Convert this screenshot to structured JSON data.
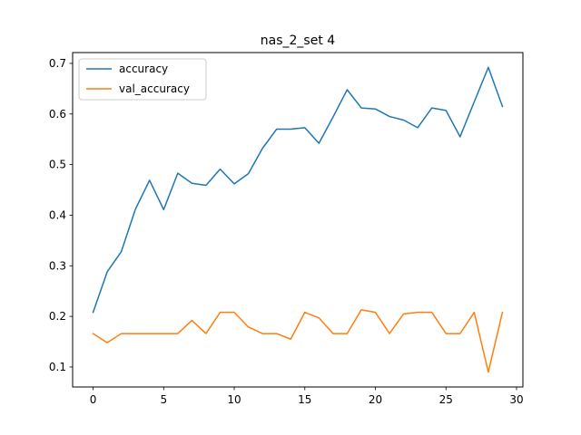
{
  "chart_data": {
    "type": "line",
    "title": "nas_2_set 4",
    "xlabel": "",
    "ylabel": "",
    "x": [
      0,
      1,
      2,
      3,
      4,
      5,
      6,
      7,
      8,
      9,
      10,
      11,
      12,
      13,
      14,
      15,
      16,
      17,
      18,
      19,
      20,
      21,
      22,
      23,
      24,
      25,
      26,
      27,
      28,
      29
    ],
    "xlim": [
      -1.45,
      30.45
    ],
    "ylim": [
      0.0605,
      0.7214
    ],
    "x_ticks": [
      0,
      5,
      10,
      15,
      20,
      25,
      30
    ],
    "y_ticks": [
      0.1,
      0.2,
      0.3,
      0.4,
      0.5,
      0.6,
      0.7
    ],
    "x_tick_labels": [
      "0",
      "5",
      "10",
      "15",
      "20",
      "25",
      "30"
    ],
    "y_tick_labels": [
      "0.1",
      "0.2",
      "0.3",
      "0.4",
      "0.5",
      "0.6",
      "0.7"
    ],
    "grid": false,
    "legend_position": "top-left",
    "series": [
      {
        "name": "accuracy",
        "color": "#1f77b4",
        "values": [
          0.208,
          0.288,
          0.328,
          0.412,
          0.469,
          0.411,
          0.483,
          0.463,
          0.459,
          0.491,
          0.462,
          0.482,
          0.532,
          0.57,
          0.57,
          0.573,
          0.542,
          0.594,
          0.648,
          0.612,
          0.61,
          0.595,
          0.588,
          0.573,
          0.612,
          0.607,
          0.555,
          0.624,
          0.692,
          0.615
        ]
      },
      {
        "name": "val_accuracy",
        "color": "#ff7f0e",
        "values": [
          0.166,
          0.148,
          0.166,
          0.166,
          0.166,
          0.166,
          0.166,
          0.192,
          0.166,
          0.208,
          0.208,
          0.179,
          0.166,
          0.166,
          0.155,
          0.208,
          0.197,
          0.166,
          0.166,
          0.213,
          0.208,
          0.166,
          0.205,
          0.208,
          0.208,
          0.166,
          0.166,
          0.208,
          0.09,
          0.208
        ]
      }
    ]
  }
}
